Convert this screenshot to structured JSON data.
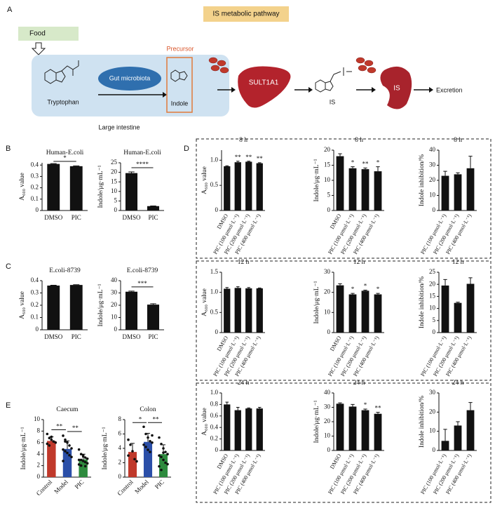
{
  "panel_labels": [
    "A",
    "B",
    "C",
    "D",
    "E"
  ],
  "pathway": {
    "title": "IS metabolic pathway",
    "food": "Food",
    "microbiota": "Gut microbiota",
    "tryptophan": "Tryptophan",
    "precursor": "Precursor",
    "indole": "Indole",
    "large_intestine": "Large intestine",
    "enzyme": "SULT1A1",
    "is_label": "IS",
    "kidney_label": "IS",
    "excretion": "Excretion"
  },
  "chart_data": [
    {
      "type": "bar",
      "title": "Human-E.coli",
      "ylabel": "A₆₀₀ value",
      "categories": [
        "DMSO",
        "PIC"
      ],
      "values": [
        0.41,
        0.39
      ],
      "errors": [
        0.003,
        0.003
      ],
      "color": "#111111",
      "ylim": [
        0,
        0.42
      ],
      "yticks": [
        0,
        0.1,
        0.2,
        0.3,
        0.4
      ],
      "brackets": [
        {
          "label": "*",
          "pair": [
            "DMSO",
            "PIC"
          ]
        }
      ]
    },
    {
      "type": "bar",
      "title": "Human-E.coli",
      "ylabel": "Indole/μg·mL⁻¹",
      "categories": [
        "DMSO",
        "PIC"
      ],
      "values": [
        19.6,
        2.3
      ],
      "errors": [
        0.6,
        0.1
      ],
      "color": "#111111",
      "ylim": [
        0,
        25
      ],
      "yticks": [
        0,
        5,
        10,
        15,
        20,
        25
      ],
      "brackets": [
        {
          "label": "****",
          "pair": [
            "DMSO",
            "PIC"
          ]
        }
      ]
    },
    {
      "type": "bar",
      "title": "E.coli-8739",
      "ylabel": "A₆₀₀ value",
      "categories": [
        "DMSO",
        "PIC"
      ],
      "values": [
        0.36,
        0.365
      ],
      "errors": [
        0.003,
        0.002
      ],
      "color": "#111111",
      "ylim": [
        0,
        0.4
      ],
      "yticks": [
        0,
        0.1,
        0.2,
        0.3,
        0.4
      ]
    },
    {
      "type": "bar",
      "title": "E.coli-8739",
      "ylabel": "Indole/μg·mL⁻¹",
      "categories": [
        "DMSO",
        "PIC"
      ],
      "values": [
        31,
        20.5
      ],
      "errors": [
        0.5,
        0.7
      ],
      "color": "#111111",
      "ylim": [
        0,
        40
      ],
      "yticks": [
        0,
        10,
        20,
        30,
        40
      ],
      "brackets": [
        {
          "label": "***",
          "pair": [
            "DMSO",
            "PIC"
          ]
        }
      ]
    },
    {
      "type": "bar",
      "title": "Caecum",
      "ylabel": "Indole/μg·mL⁻¹",
      "categories": [
        "Control",
        "Model",
        "PIC"
      ],
      "values": [
        6.3,
        4.9,
        3.1
      ],
      "errors": [
        0.7,
        1.4,
        0.9
      ],
      "colors": [
        "#c0392b",
        "#2b4fa8",
        "#2e8b3e"
      ],
      "ylim": [
        0,
        10
      ],
      "yticks": [
        0,
        2,
        4,
        6,
        8,
        10
      ],
      "points": [
        [
          7.5,
          6.8,
          6.5,
          6.2,
          6.0,
          5.8,
          5.5,
          7.0
        ],
        [
          7.2,
          6.5,
          6.0,
          5.5,
          5.0,
          4.8,
          4.5,
          4.2,
          3.8,
          3.5,
          2.8,
          6.2
        ],
        [
          4.8,
          4.0,
          3.6,
          3.4,
          3.2,
          3.0,
          3.0,
          2.8,
          2.6,
          2.4,
          2.2,
          2.0,
          3.8,
          1.9
        ]
      ],
      "brackets": [
        {
          "label": "**",
          "pair": [
            "Control",
            "Model"
          ]
        },
        {
          "label": "**",
          "pair": [
            "Model",
            "PIC"
          ]
        }
      ]
    },
    {
      "type": "bar",
      "title": "Colon",
      "ylabel": "Indole/μg·mL⁻¹",
      "categories": [
        "Control",
        "Model",
        "PIC"
      ],
      "values": [
        3.5,
        4.9,
        3.2
      ],
      "errors": [
        1.2,
        1.2,
        1.3
      ],
      "colors": [
        "#c0392b",
        "#2b4fa8",
        "#2e8b3e"
      ],
      "ylim": [
        0,
        8
      ],
      "yticks": [
        0,
        2,
        4,
        6,
        8
      ],
      "points": [
        [
          5.2,
          4.5,
          3.6,
          2.5,
          2.2,
          3.0
        ],
        [
          7.0,
          6.0,
          5.5,
          5.0,
          4.8,
          4.5,
          4.2,
          3.8,
          3.5,
          5.8
        ],
        [
          5.5,
          4.6,
          4.0,
          3.5,
          3.2,
          3.0,
          2.8,
          2.4,
          2.0,
          1.8,
          1.5,
          1.0,
          3.4
        ]
      ],
      "brackets": [
        {
          "label": "*",
          "pair": [
            "Control",
            "Model"
          ]
        },
        {
          "label": "**",
          "pair": [
            "Model",
            "PIC"
          ]
        }
      ]
    },
    {
      "type": "bar",
      "title": "8 h",
      "ylabel": "A₆₀₀ value",
      "categories": [
        "DMSO",
        "PIC (100 μmol·L⁻¹)",
        "PIC (200 μmol·L⁻¹)",
        "PIC (400 μmol·L⁻¹)"
      ],
      "values": [
        0.88,
        0.96,
        0.97,
        0.94
      ],
      "errors": [
        0.01,
        0.02,
        0.01,
        0.01
      ],
      "stars": [
        null,
        "**",
        "**",
        "**"
      ],
      "color": "#111111",
      "ylim": [
        0,
        1.2
      ],
      "yticks": [
        0,
        0.5,
        {
          "value": 1,
          "label": "1.0"
        }
      ]
    },
    {
      "type": "bar",
      "title": "8 h",
      "ylabel": "Indole/μg·mL⁻¹",
      "categories": [
        "DMSO",
        "PIC (100 μmol·L⁻¹)",
        "PIC (200 μmol·L⁻¹)",
        "PIC (400 μmol·L⁻¹)"
      ],
      "values": [
        18,
        14,
        13.7,
        13
      ],
      "errors": [
        0.8,
        0.5,
        0.4,
        1.5
      ],
      "stars": [
        null,
        "*",
        "**",
        "*"
      ],
      "color": "#111111",
      "ylim": [
        0,
        20
      ],
      "yticks": [
        0,
        5,
        10,
        15,
        20
      ]
    },
    {
      "type": "bar",
      "title": "8 h",
      "ylabel": "Indole inhibition/%",
      "categories": [
        "PIC (100 μmol·L⁻¹)",
        "PIC (200 μmol·L⁻¹)",
        "PIC (400 μmol·L⁻¹)"
      ],
      "values": [
        23,
        24,
        28
      ],
      "errors": [
        3,
        1,
        8
      ],
      "color": "#111111",
      "ylim": [
        0,
        40
      ],
      "yticks": [
        0,
        10,
        20,
        30,
        40
      ]
    },
    {
      "type": "bar",
      "title": "12 h",
      "ylabel": "A₆₀₀ value",
      "categories": [
        "DMSO",
        "PIC (100 μmol·L⁻¹)",
        "PIC (200 μmol·L⁻¹)",
        "PIC (400 μmol·L⁻¹)"
      ],
      "values": [
        1.09,
        1.11,
        1.1,
        1.1
      ],
      "errors": [
        0.03,
        0.03,
        0.02,
        0.01
      ],
      "color": "#111111",
      "ylim": [
        0,
        1.5
      ],
      "yticks": [
        0,
        0.5,
        {
          "value": 1,
          "label": "1.0"
        },
        1.5
      ]
    },
    {
      "type": "bar",
      "title": "12 h",
      "ylabel": "Indole/μg·mL⁻¹",
      "categories": [
        "DMSO",
        "PIC (100 μmol·L⁻¹)",
        "PIC (200 μmol·L⁻¹)",
        "PIC (400 μmol·L⁻¹)"
      ],
      "values": [
        23.5,
        19,
        20.8,
        19
      ],
      "errors": [
        0.8,
        0.5,
        0.3,
        0.5
      ],
      "stars": [
        null,
        "*",
        "*",
        "*"
      ],
      "color": "#111111",
      "ylim": [
        0,
        30
      ],
      "yticks": [
        0,
        10,
        20,
        30
      ]
    },
    {
      "type": "bar",
      "title": "12 h",
      "ylabel": "Indole inhibition/%",
      "categories": [
        "PIC (100 μmol·L⁻¹)",
        "PIC (200 μmol·L⁻¹)",
        "PIC (400 μmol·L⁻¹)"
      ],
      "values": [
        19.5,
        12.3,
        20.2
      ],
      "errors": [
        2.5,
        0.3,
        2.5
      ],
      "color": "#111111",
      "ylim": [
        0,
        25
      ],
      "yticks": [
        0,
        5,
        10,
        15,
        20,
        25
      ]
    },
    {
      "type": "bar",
      "title": "24 h",
      "ylabel": "A₆₀₀ value",
      "categories": [
        "DMSO",
        "PIC (100 μmol·L⁻¹)",
        "PIC (200 μmol·L⁻¹)",
        "PIC (400 μmol·L⁻¹)"
      ],
      "values": [
        0.8,
        0.7,
        0.73,
        0.73
      ],
      "errors": [
        0.04,
        0.05,
        0.01,
        0.02
      ],
      "color": "#111111",
      "ylim": [
        0,
        1
      ],
      "yticks": [
        0,
        0.2,
        0.4,
        0.6,
        0.8,
        {
          "value": 1,
          "label": "1.0"
        }
      ]
    },
    {
      "type": "bar",
      "title": "24 h",
      "ylabel": "Indole/μg·mL⁻¹",
      "categories": [
        "DMSO",
        "PIC (100 μmol·L⁻¹)",
        "PIC (200 μmol·L⁻¹)",
        "PIC (400 μmol·L⁻¹)"
      ],
      "values": [
        32.5,
        30.5,
        28,
        25.5
      ],
      "errors": [
        0.6,
        1.5,
        0.8,
        1
      ],
      "stars": [
        null,
        null,
        "*",
        "**"
      ],
      "color": "#111111",
      "ylim": [
        0,
        40
      ],
      "yticks": [
        0,
        10,
        20,
        30,
        40
      ]
    },
    {
      "type": "bar",
      "title": "24 h",
      "ylabel": "Indole inhibition/%",
      "categories": [
        "PIC (100 μmol·L⁻¹)",
        "PIC (200 μmol·L⁻¹)",
        "PIC (400 μmol·L⁻¹)"
      ],
      "values": [
        5,
        13,
        21
      ],
      "errors": [
        6,
        2,
        4
      ],
      "color": "#111111",
      "ylim": [
        0,
        30
      ],
      "yticks": [
        0,
        10,
        20,
        30
      ]
    }
  ]
}
